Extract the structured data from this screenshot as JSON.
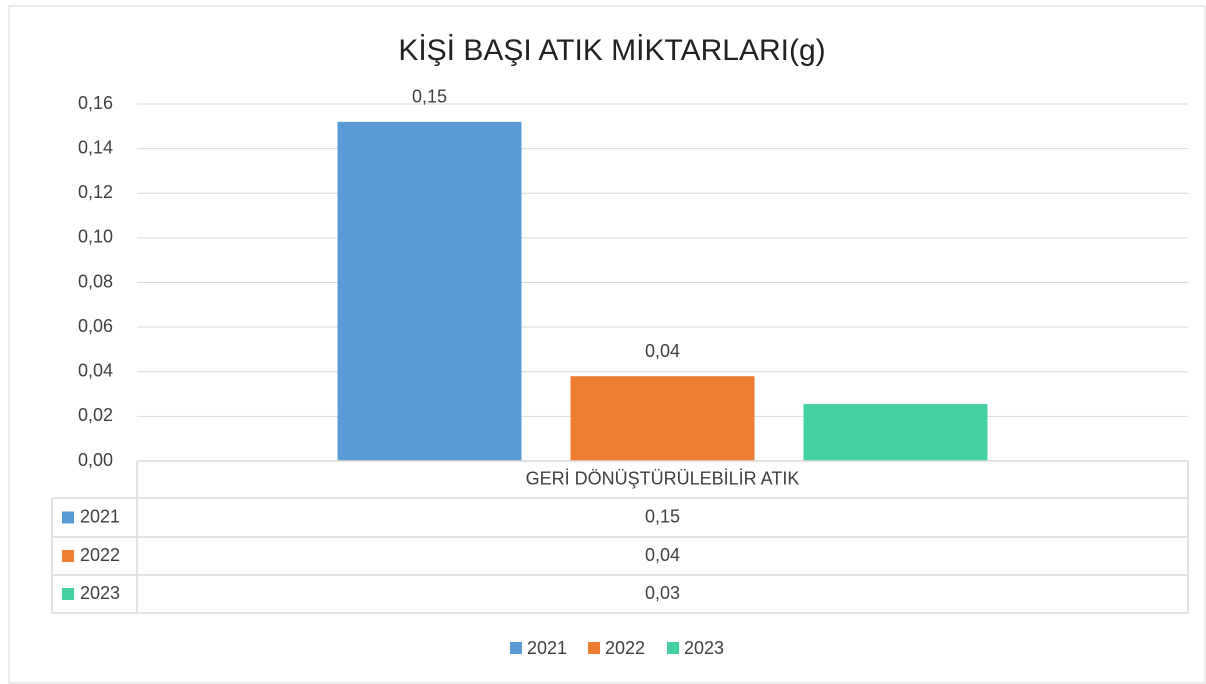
{
  "chart_data": {
    "type": "bar",
    "title": "KİŞİ BAŞI ATIK MİKTARLARI(g)",
    "categories": [
      "GERİ DÖNÜŞTÜRÜLEBİLİR ATIK"
    ],
    "series": [
      {
        "name": "2021",
        "color": "#5b9bd5",
        "values": [
          0.152
        ],
        "value_labels": [
          "0,15"
        ],
        "show_label": true
      },
      {
        "name": "2022",
        "color": "#ed7d31",
        "values": [
          0.038
        ],
        "value_labels": [
          "0,04"
        ],
        "show_label": true
      },
      {
        "name": "2023",
        "color": "#43d1a1",
        "values": [
          0.0255
        ],
        "value_labels": [
          "0,03"
        ],
        "show_label": false
      }
    ],
    "ylim": [
      0,
      0.16
    ],
    "yticks": [
      {
        "value": 0,
        "label": "0,00"
      },
      {
        "value": 0.02,
        "label": "0,02"
      },
      {
        "value": 0.04,
        "label": "0,04"
      },
      {
        "value": 0.06,
        "label": "0,06"
      },
      {
        "value": 0.08,
        "label": "0,08"
      },
      {
        "value": 0.1,
        "label": "0,10"
      },
      {
        "value": 0.12,
        "label": "0,12"
      },
      {
        "value": 0.14,
        "label": "0,14"
      },
      {
        "value": 0.16,
        "label": "0,16"
      }
    ],
    "grid": true,
    "legend": "bottom",
    "data_table": true
  }
}
